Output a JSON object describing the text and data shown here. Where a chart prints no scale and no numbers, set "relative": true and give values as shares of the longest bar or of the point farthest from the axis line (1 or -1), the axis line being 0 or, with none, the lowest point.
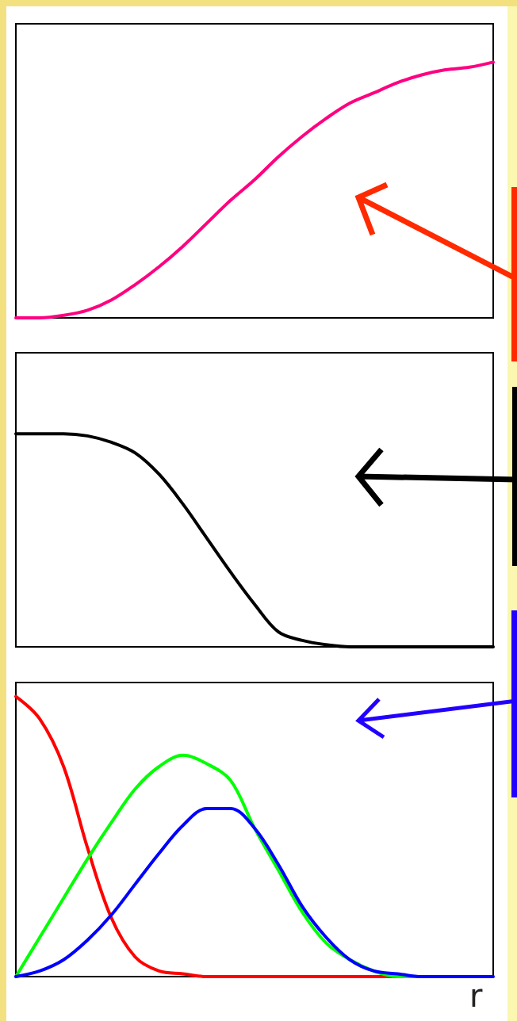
{
  "chart_data": [
    {
      "type": "line",
      "relative": true,
      "marker": "none",
      "categories": [
        null,
        null,
        null,
        null,
        null,
        null,
        null,
        null,
        null,
        null,
        null,
        null,
        null,
        null,
        null,
        null,
        null,
        null,
        null,
        null,
        null
      ],
      "series": [
        {
          "color": "#ff0080",
          "values": [
            0,
            0,
            0.01,
            0.03,
            0.07,
            0.13,
            0.2,
            0.28,
            0.37,
            0.46,
            0.54,
            0.63,
            0.71,
            0.78,
            0.84,
            0.88,
            0.92,
            0.95,
            0.97,
            0.98,
            1
          ]
        }
      ]
    },
    {
      "type": "line",
      "relative": true,
      "marker": "none",
      "categories": [
        null,
        null,
        null,
        null,
        null,
        null,
        null,
        null,
        null,
        null,
        null,
        null,
        null,
        null,
        null,
        null,
        null,
        null,
        null,
        null,
        null
      ],
      "series": [
        {
          "color": "#000000",
          "values": [
            1,
            1,
            1,
            0.99,
            0.96,
            0.91,
            0.81,
            0.67,
            0.51,
            0.35,
            0.2,
            0.07,
            0.03,
            0.01,
            0,
            0,
            0,
            0,
            0,
            0,
            0
          ]
        }
      ]
    },
    {
      "type": "line",
      "relative": true,
      "marker": "none",
      "xlabel": "r",
      "categories": [
        null,
        null,
        null,
        null,
        null,
        null,
        null,
        null,
        null,
        null,
        null,
        null,
        null,
        null,
        null,
        null,
        null,
        null,
        null,
        null,
        null
      ],
      "series": [
        {
          "color": "#ff0000",
          "values": [
            1,
            0.92,
            0.75,
            0.46,
            0.21,
            0.07,
            0.02,
            0.01,
            0,
            0,
            0,
            0,
            0,
            0,
            0,
            0,
            0,
            0,
            null,
            null,
            null
          ]
        },
        {
          "color": "#00ff00",
          "values": [
            0,
            0.14,
            0.28,
            0.42,
            0.55,
            0.67,
            0.75,
            0.79,
            0.76,
            0.7,
            0.53,
            0.38,
            0.23,
            0.12,
            0.06,
            0.02,
            0,
            0,
            0,
            null,
            null
          ]
        },
        {
          "color": "#0000ff",
          "values": [
            0,
            0.02,
            0.06,
            0.13,
            0.22,
            0.33,
            0.44,
            0.54,
            0.6,
            0.6,
            0.53,
            0.4,
            0.25,
            0.14,
            0.06,
            0.02,
            0.01,
            0,
            0,
            0,
            0
          ]
        }
      ]
    }
  ]
}
